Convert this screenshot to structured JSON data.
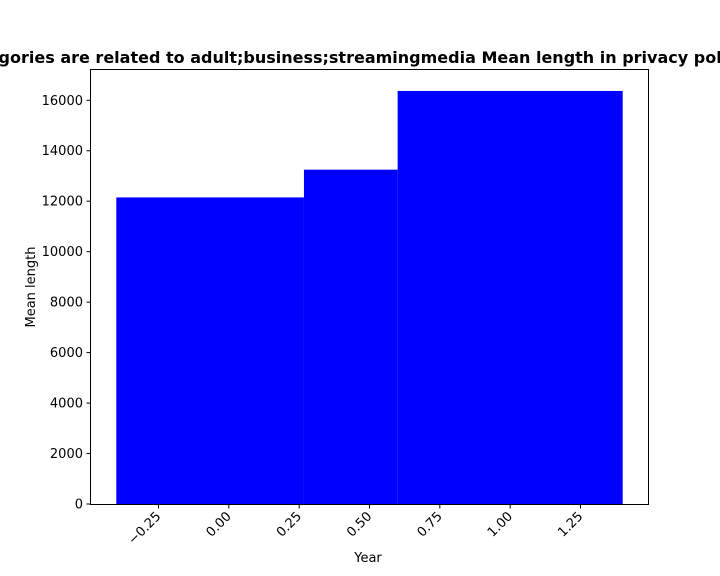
{
  "chart_data": {
    "type": "bar",
    "title": "Categories are related to adult;business;streamingmedia Mean length in privacy policies",
    "xlabel": "Year",
    "ylabel": "Mean length",
    "bars": [
      {
        "x_start": -0.4,
        "x_end": 0.267,
        "value": 12150
      },
      {
        "x_start": 0.267,
        "x_end": 0.6,
        "value": 13250
      },
      {
        "x_start": 0.6,
        "x_end": 1.4,
        "value": 16370
      }
    ],
    "xlim": [
      -0.49,
      1.49
    ],
    "ylim": [
      0,
      17200
    ],
    "xticks": [
      -0.25,
      0.0,
      0.25,
      0.5,
      0.75,
      1.0,
      1.25
    ],
    "xtick_labels": [
      "−0.25",
      "0.00",
      "0.25",
      "0.50",
      "0.75",
      "1.00",
      "1.25"
    ],
    "yticks": [
      0,
      2000,
      4000,
      6000,
      8000,
      10000,
      12000,
      14000,
      16000
    ],
    "ytick_labels": [
      "0",
      "2000",
      "4000",
      "6000",
      "8000",
      "10000",
      "12000",
      "14000",
      "16000"
    ],
    "bar_color": "#0000ff",
    "grid": false,
    "legend": "none"
  }
}
